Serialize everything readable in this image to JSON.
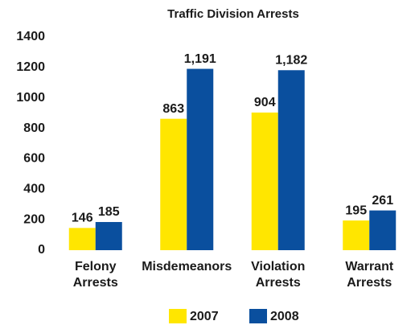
{
  "chart_data": {
    "type": "bar",
    "title": "Traffic Division Arrests",
    "categories": [
      "Felony Arrests",
      "Misdemeanors",
      "Violation Arrests",
      "Warrant Arrests"
    ],
    "series": [
      {
        "name": "2007",
        "color": "#ffe600",
        "values": [
          146,
          863,
          904,
          195
        ],
        "value_labels": [
          "146",
          "863",
          "904",
          "195"
        ]
      },
      {
        "name": "2008",
        "color": "#0a4f9e",
        "values": [
          185,
          1191,
          1182,
          261
        ],
        "value_labels": [
          "185",
          "1,191",
          "1,182",
          "261"
        ]
      }
    ],
    "ylim": [
      0,
      1400
    ],
    "yticks": [
      0,
      200,
      400,
      600,
      800,
      1000,
      1200,
      1400
    ],
    "grid": false,
    "legend": "bottom"
  }
}
